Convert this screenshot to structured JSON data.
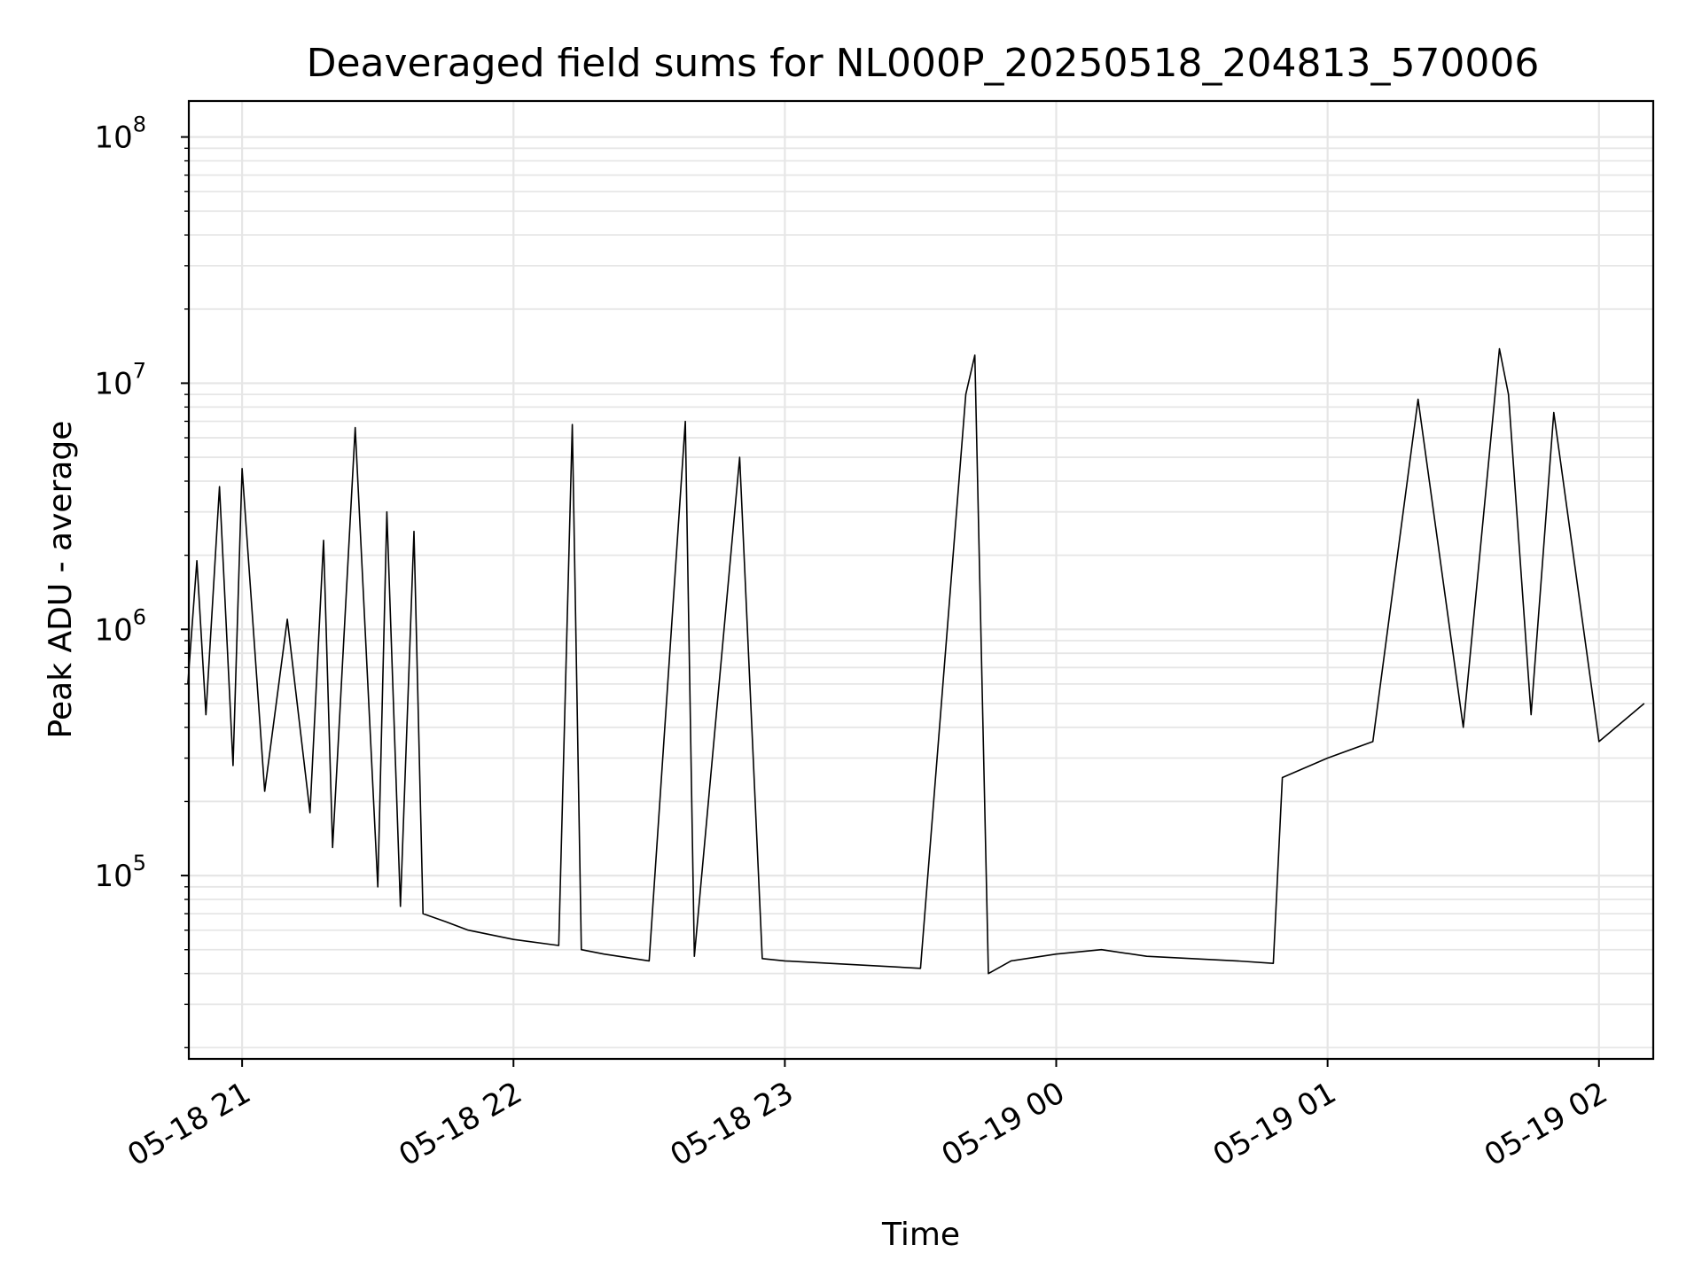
{
  "chart_data": {
    "type": "line",
    "title": "Deaveraged field sums for NL000P_20250518_204813_570006",
    "xlabel": "Time",
    "ylabel": "Peak ADU - average",
    "yscale": "log",
    "ylim": [
      18000,
      140000000
    ],
    "xlim": [
      "2025-05-18 20:48:13",
      "2025-05-19 02:12:00"
    ],
    "x_ticks": [
      "05-18 21",
      "05-18 22",
      "05-18 23",
      "05-19 00",
      "05-19 01",
      "05-19 02"
    ],
    "y_ticks": [
      {
        "base": "10",
        "exp": "5",
        "value": 100000
      },
      {
        "base": "10",
        "exp": "6",
        "value": 1000000
      },
      {
        "base": "10",
        "exp": "7",
        "value": 10000000
      },
      {
        "base": "10",
        "exp": "8",
        "value": 100000000
      }
    ],
    "grid": true,
    "line_color": "#000000",
    "grid_color": "#e6e6e6",
    "series": [
      {
        "x": [
          "2025-05-18 20:48",
          "2025-05-18 20:50",
          "2025-05-18 20:52",
          "2025-05-18 20:55",
          "2025-05-18 20:58",
          "2025-05-18 21:00",
          "2025-05-18 21:05",
          "2025-05-18 21:10",
          "2025-05-18 21:15",
          "2025-05-18 21:18",
          "2025-05-18 21:20",
          "2025-05-18 21:25",
          "2025-05-18 21:30",
          "2025-05-18 21:32",
          "2025-05-18 21:35",
          "2025-05-18 21:38",
          "2025-05-18 21:40",
          "2025-05-18 21:45",
          "2025-05-18 21:50",
          "2025-05-18 22:00",
          "2025-05-18 22:10",
          "2025-05-18 22:13",
          "2025-05-18 22:15",
          "2025-05-18 22:20",
          "2025-05-18 22:30",
          "2025-05-18 22:38",
          "2025-05-18 22:40",
          "2025-05-18 22:50",
          "2025-05-18 22:55",
          "2025-05-18 23:00",
          "2025-05-18 23:10",
          "2025-05-18 23:20",
          "2025-05-18 23:30",
          "2025-05-18 23:40",
          "2025-05-18 23:42",
          "2025-05-18 23:45",
          "2025-05-18 23:50",
          "2025-05-19 00:00",
          "2025-05-19 00:10",
          "2025-05-19 00:20",
          "2025-05-19 00:30",
          "2025-05-19 00:40",
          "2025-05-19 00:48",
          "2025-05-19 00:50",
          "2025-05-19 01:00",
          "2025-05-19 01:10",
          "2025-05-19 01:20",
          "2025-05-19 01:30",
          "2025-05-19 01:38",
          "2025-05-19 01:40",
          "2025-05-19 01:45",
          "2025-05-19 01:50",
          "2025-05-19 02:00",
          "2025-05-19 02:10"
        ],
        "y": [
          600000,
          1900000,
          450000,
          3800000,
          280000,
          4500000,
          220000,
          1100000,
          180000,
          2300000,
          130000,
          6600000,
          90000,
          3000000,
          75000,
          2500000,
          70000,
          65000,
          60000,
          55000,
          52000,
          6800000,
          50000,
          48000,
          45000,
          7000000,
          47000,
          5000000,
          46000,
          45000,
          44000,
          43000,
          42000,
          9000000,
          13000000,
          40000,
          45000,
          48000,
          50000,
          47000,
          46000,
          45000,
          44000,
          250000,
          300000,
          350000,
          8600000,
          400000,
          13800000,
          9000000,
          450000,
          7600000,
          350000,
          500000
        ]
      }
    ]
  }
}
